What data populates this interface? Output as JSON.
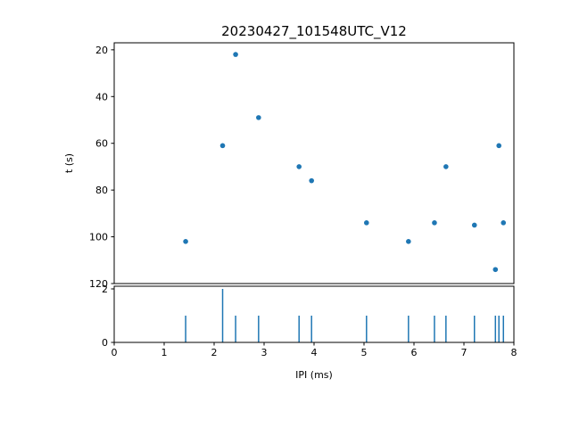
{
  "figure": {
    "background": "#ffffff",
    "axis_color": "#000000",
    "accent_color": "#1f77b4"
  },
  "chart_data": [
    {
      "type": "scatter",
      "title": "20230427_101548UTC_V12",
      "xlabel": "",
      "ylabel": "t (s)",
      "xlim": [
        0,
        8
      ],
      "ylim": [
        120,
        17
      ],
      "y_inverted": true,
      "grid": false,
      "legend": "none",
      "xticks": [
        0,
        1,
        2,
        3,
        4,
        5,
        6,
        7,
        8
      ],
      "yticks": [
        20,
        40,
        60,
        80,
        100,
        120
      ],
      "x": [
        1.43,
        2.17,
        2.43,
        2.89,
        3.7,
        3.95,
        5.05,
        5.89,
        6.41,
        6.64,
        7.21,
        7.63,
        7.7,
        7.79
      ],
      "y": [
        102,
        61,
        22,
        49,
        70,
        76,
        94,
        102,
        94,
        70,
        95,
        114,
        61,
        94
      ],
      "color": "#1f77b4",
      "marker": "point"
    },
    {
      "type": "stem",
      "title": "",
      "xlabel": "IPI (ms)",
      "ylabel": "",
      "xlim": [
        0,
        8
      ],
      "ylim": [
        0,
        2.1
      ],
      "grid": false,
      "legend": "none",
      "xticks": [
        0,
        1,
        2,
        3,
        4,
        5,
        6,
        7,
        8
      ],
      "yticks": [
        0,
        2
      ],
      "x": [
        1.43,
        2.17,
        2.43,
        2.89,
        3.7,
        3.95,
        5.05,
        5.89,
        6.41,
        6.64,
        7.21,
        7.63,
        7.7,
        7.79
      ],
      "values": [
        1,
        2,
        1,
        1,
        1,
        1,
        1,
        1,
        1,
        1,
        1,
        1,
        1,
        1
      ],
      "color": "#1f77b4"
    }
  ]
}
